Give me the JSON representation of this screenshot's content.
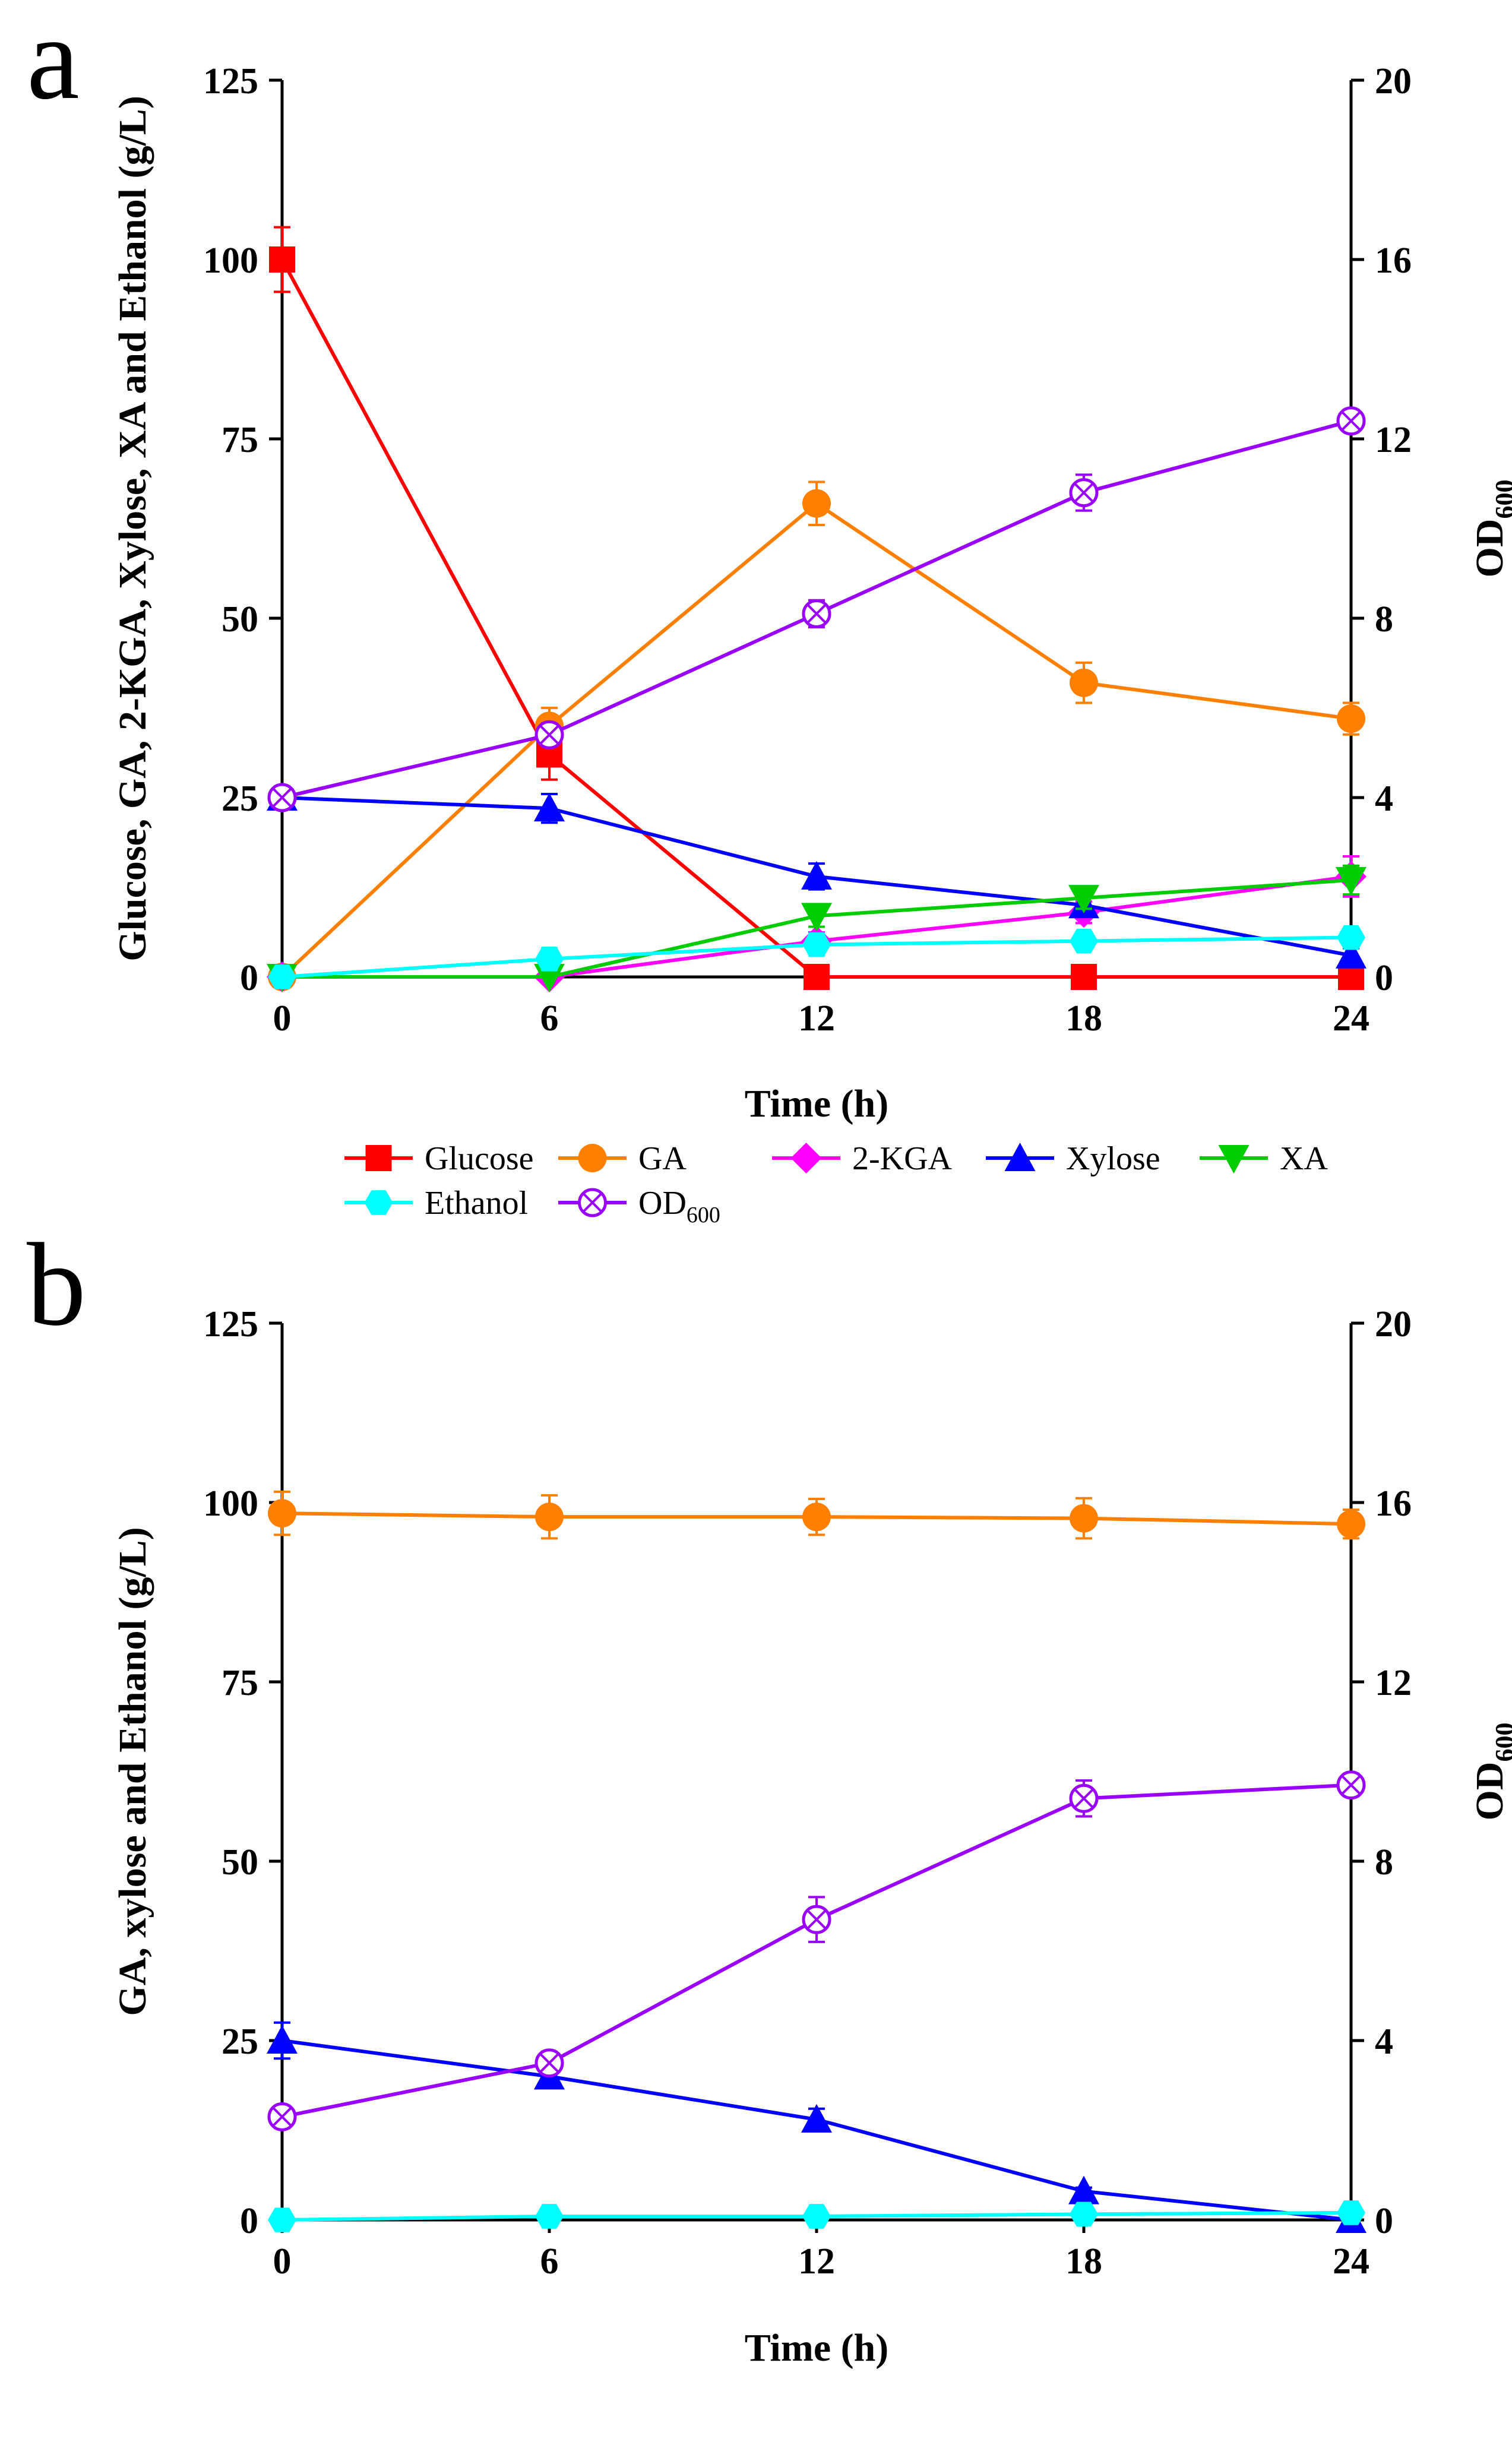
{
  "chart_data": [
    {
      "type": "line",
      "panel_label": "a",
      "xlabel": "Time (h)",
      "ylabel": "Glucose, GA, 2-KGA, Xylose, XA and Ethanol (g/L)",
      "y2label": {
        "main": "OD",
        "sub": "600"
      },
      "x": [
        0,
        6,
        12,
        18,
        24
      ],
      "xticks": [
        "0",
        "6",
        "12",
        "18",
        "24"
      ],
      "xlim": [
        0,
        24
      ],
      "ylim": [
        0,
        125
      ],
      "yticks": [
        "0",
        "25",
        "50",
        "75",
        "100",
        "125"
      ],
      "y2lim": [
        0,
        20
      ],
      "y2ticks": [
        "0",
        "4",
        "8",
        "12",
        "16",
        "20"
      ],
      "legend_position": "bottom",
      "series": [
        {
          "name": "Glucose",
          "label_main": "Glucose",
          "label_sub": "",
          "color": "#ff0000",
          "marker": "square",
          "axis": "left",
          "values": [
            100,
            31,
            0,
            0,
            0
          ],
          "errors": [
            4.5,
            3.5,
            0,
            0,
            0
          ]
        },
        {
          "name": "GA",
          "label_main": "GA",
          "label_sub": "",
          "color": "#ff8000",
          "marker": "circle",
          "axis": "left",
          "values": [
            0,
            35,
            66,
            41,
            36
          ],
          "errors": [
            0,
            2.5,
            3,
            2.8,
            2.2
          ]
        },
        {
          "name": "2-KGA",
          "label_main": "2-KGA",
          "label_sub": "",
          "color": "#ff00ff",
          "marker": "diamond",
          "axis": "left",
          "values": [
            0,
            0,
            5,
            9,
            14
          ],
          "errors": [
            0,
            0,
            1.2,
            1.5,
            2.8
          ]
        },
        {
          "name": "Xylose",
          "label_main": "Xylose",
          "label_sub": "",
          "color": "#0000ff",
          "marker": "triangle-up",
          "axis": "left",
          "values": [
            25,
            23.5,
            14,
            10,
            3
          ],
          "errors": [
            1.5,
            2,
            1.8,
            1.5,
            1
          ]
        },
        {
          "name": "XA",
          "label_main": "XA",
          "label_sub": "",
          "color": "#00cc00",
          "marker": "triangle-down",
          "axis": "left",
          "values": [
            0,
            0,
            8.5,
            11,
            13.5
          ],
          "errors": [
            0,
            0,
            1.5,
            1.5,
            2
          ]
        },
        {
          "name": "Ethanol",
          "label_main": "Ethanol",
          "label_sub": "",
          "color": "#00ffff",
          "marker": "hexagon",
          "axis": "left",
          "values": [
            0,
            2.5,
            4.5,
            5,
            5.5
          ],
          "errors": [
            0,
            1.5,
            1.5,
            1,
            1.2
          ]
        },
        {
          "name": "OD600",
          "label_main": "OD",
          "label_sub": "600",
          "color": "#9900ff",
          "marker": "circle-x",
          "axis": "right",
          "values": [
            4,
            5.4,
            8.1,
            10.8,
            12.4
          ],
          "errors": [
            0.25,
            0.25,
            0.3,
            0.4,
            0.25
          ]
        }
      ]
    },
    {
      "type": "line",
      "panel_label": "b",
      "xlabel": "Time (h)",
      "ylabel": "GA, xylose and Ethanol (g/L)",
      "y2label": {
        "main": "OD",
        "sub": "600"
      },
      "x": [
        0,
        6,
        12,
        18,
        24
      ],
      "xticks": [
        "0",
        "6",
        "12",
        "18",
        "24"
      ],
      "xlim": [
        0,
        24
      ],
      "ylim": [
        0,
        125
      ],
      "yticks": [
        "0",
        "25",
        "50",
        "75",
        "100",
        "125"
      ],
      "y2lim": [
        0,
        20
      ],
      "y2ticks": [
        "0",
        "4",
        "8",
        "12",
        "16",
        "20"
      ],
      "legend_position": "bottom",
      "series": [
        {
          "name": "GA",
          "label_main": "GA",
          "label_sub": "",
          "color": "#ff8000",
          "marker": "circle",
          "axis": "left",
          "values": [
            98.5,
            98,
            98,
            97.8,
            97
          ],
          "errors": [
            3,
            3,
            2.5,
            2.8,
            2
          ]
        },
        {
          "name": "Xylose",
          "label_main": "Xylose",
          "label_sub": "",
          "color": "#0000ff",
          "marker": "triangle-up",
          "axis": "left",
          "values": [
            25,
            20,
            14,
            4,
            0
          ],
          "errors": [
            2.5,
            1.5,
            1.5,
            0.5,
            0
          ]
        },
        {
          "name": "Ethanol",
          "label_main": "Ethanol",
          "label_sub": "",
          "color": "#00ffff",
          "marker": "hexagon",
          "axis": "left",
          "values": [
            0,
            0.5,
            0.5,
            0.8,
            1
          ],
          "errors": [
            0,
            0.2,
            0.2,
            0.3,
            0.3
          ]
        },
        {
          "name": "OD600",
          "label_main": "OD",
          "label_sub": "600",
          "color": "#9900ff",
          "marker": "circle-x",
          "axis": "right",
          "values": [
            2.3,
            3.5,
            6.7,
            9.4,
            9.7
          ],
          "errors": [
            0.25,
            0.25,
            0.5,
            0.4,
            0.25
          ]
        }
      ]
    }
  ]
}
